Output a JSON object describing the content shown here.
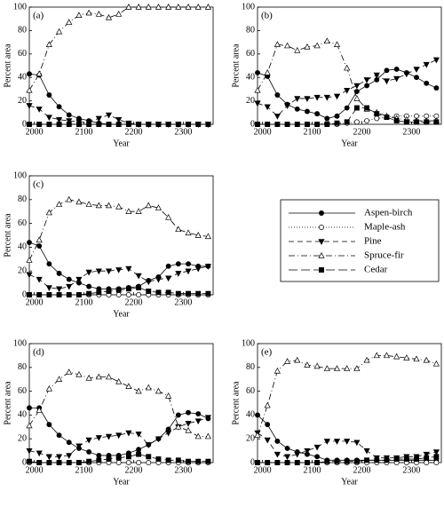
{
  "legend": [
    {
      "name": "Aspen-birch",
      "marker": "circle-filled",
      "dash": "none"
    },
    {
      "name": "Maple-ash",
      "marker": "circle-open",
      "dash": "1,2"
    },
    {
      "name": "Pine",
      "marker": "tri-down-filled",
      "dash": "6,4"
    },
    {
      "name": "Spruce-fir",
      "marker": "tri-up-open",
      "dash": "7,3,1,3"
    },
    {
      "name": "Cedar",
      "marker": "square-filled",
      "dash": "10,4"
    }
  ],
  "chart_data": [
    {
      "type": "line",
      "label": "(a)",
      "ylabel": "Percent area",
      "xlabel": "Year",
      "x": [
        1990,
        2010,
        2030,
        2050,
        2070,
        2090,
        2110,
        2130,
        2150,
        2170,
        2190,
        2210,
        2230,
        2250,
        2270,
        2290,
        2310,
        2330,
        2350
      ],
      "xlim": [
        1990,
        2360
      ],
      "ylim": [
        0,
        100
      ],
      "xticks": [
        2000,
        2100,
        2200,
        2300
      ],
      "yticks": [
        0,
        20,
        40,
        60,
        80,
        100
      ],
      "series": [
        {
          "values": [
            43,
            42,
            25,
            15,
            8,
            5,
            3,
            1,
            0,
            0,
            0,
            0,
            0,
            0,
            0,
            0,
            0,
            0,
            0
          ]
        },
        {
          "values": [
            0,
            0,
            0,
            0,
            0,
            0,
            0,
            0,
            0,
            0,
            0,
            0,
            0,
            0,
            0,
            0,
            0,
            0,
            0
          ]
        },
        {
          "values": [
            16,
            13,
            6,
            4,
            3,
            2,
            2,
            5,
            8,
            4,
            1,
            0,
            0,
            0,
            0,
            0,
            0,
            0,
            0
          ]
        },
        {
          "values": [
            29,
            43,
            68,
            79,
            87,
            93,
            95,
            94,
            91,
            94,
            100,
            100,
            100,
            100,
            100,
            100,
            100,
            100,
            100
          ]
        },
        {
          "values": [
            0,
            0,
            0,
            0,
            0,
            0,
            0,
            0,
            0,
            0,
            0,
            0,
            0,
            0,
            0,
            0,
            0,
            0,
            0
          ]
        }
      ]
    },
    {
      "type": "line",
      "label": "(b)",
      "ylabel": "Percent area",
      "xlabel": "Year",
      "x": [
        1990,
        2010,
        2030,
        2050,
        2070,
        2090,
        2110,
        2130,
        2150,
        2170,
        2190,
        2210,
        2230,
        2250,
        2270,
        2290,
        2310,
        2330,
        2350
      ],
      "xlim": [
        1990,
        2360
      ],
      "ylim": [
        0,
        100
      ],
      "xticks": [
        2000,
        2100,
        2200,
        2300
      ],
      "yticks": [
        0,
        20,
        40,
        60,
        80,
        100
      ],
      "series": [
        {
          "values": [
            44,
            41,
            25,
            17,
            13,
            11,
            9,
            5,
            7,
            14,
            28,
            33,
            38,
            46,
            47,
            44,
            40,
            35,
            31
          ]
        },
        {
          "values": [
            0,
            0,
            0,
            0,
            0,
            0,
            0,
            1,
            0,
            1,
            2,
            3,
            5,
            6,
            7,
            7,
            7,
            7,
            7
          ]
        },
        {
          "values": [
            18,
            15,
            7,
            16,
            22,
            22,
            23,
            23,
            24,
            29,
            33,
            38,
            42,
            37,
            39,
            43,
            47,
            51,
            55
          ]
        },
        {
          "values": [
            29,
            44,
            68,
            67,
            63,
            66,
            67,
            71,
            68,
            48,
            22,
            13,
            10,
            7,
            5,
            4,
            3,
            3,
            3
          ]
        },
        {
          "values": [
            0,
            0,
            0,
            0,
            0,
            0,
            0,
            0,
            1,
            2,
            14,
            14,
            9,
            6,
            3,
            2,
            2,
            2,
            2
          ]
        }
      ]
    },
    {
      "type": "line",
      "label": "(c)",
      "ylabel": "Percent area",
      "xlabel": "Year",
      "x": [
        1990,
        2010,
        2030,
        2050,
        2070,
        2090,
        2110,
        2130,
        2150,
        2170,
        2190,
        2210,
        2230,
        2250,
        2270,
        2290,
        2310,
        2330,
        2350
      ],
      "xlim": [
        1990,
        2360
      ],
      "ylim": [
        0,
        100
      ],
      "xticks": [
        2000,
        2100,
        2200,
        2300
      ],
      "yticks": [
        0,
        20,
        40,
        60,
        80,
        100
      ],
      "series": [
        {
          "values": [
            44,
            41,
            26,
            18,
            13,
            10,
            7,
            5,
            5,
            5,
            6,
            7,
            12,
            15,
            24,
            26,
            26,
            24,
            24
          ]
        },
        {
          "values": [
            0,
            0,
            0,
            0,
            0,
            0,
            0,
            0,
            0,
            0,
            0,
            0,
            0,
            0,
            0,
            0,
            0,
            0,
            0
          ]
        },
        {
          "values": [
            17,
            13,
            6,
            5,
            7,
            13,
            19,
            20,
            20,
            21,
            22,
            16,
            11,
            13,
            14,
            18,
            20,
            22,
            24
          ]
        },
        {
          "values": [
            29,
            46,
            69,
            76,
            80,
            78,
            76,
            75,
            75,
            74,
            70,
            70,
            75,
            73,
            65,
            55,
            52,
            50,
            49
          ]
        },
        {
          "values": [
            0,
            0,
            0,
            0,
            0,
            0,
            1,
            2,
            3,
            4,
            5,
            6,
            3,
            2,
            2,
            1,
            1,
            1,
            1
          ]
        }
      ]
    },
    {
      "type": "line",
      "label": "(d)",
      "ylabel": "Percent area",
      "xlabel": "Year",
      "x": [
        1990,
        2010,
        2030,
        2050,
        2070,
        2090,
        2110,
        2130,
        2150,
        2170,
        2190,
        2210,
        2230,
        2250,
        2270,
        2290,
        2310,
        2330,
        2350
      ],
      "xlim": [
        1990,
        2360
      ],
      "ylim": [
        0,
        100
      ],
      "xticks": [
        2000,
        2100,
        2200,
        2300
      ],
      "yticks": [
        0,
        20,
        40,
        60,
        80,
        100
      ],
      "series": [
        {
          "values": [
            46,
            46,
            32,
            23,
            17,
            12,
            9,
            6,
            6,
            6,
            8,
            11,
            15,
            20,
            28,
            40,
            42,
            41,
            37
          ]
        },
        {
          "values": [
            0,
            0,
            0,
            0,
            0,
            0,
            0,
            0,
            0,
            0,
            0,
            0,
            0,
            0,
            0,
            0,
            0,
            0,
            0
          ]
        },
        {
          "values": [
            10,
            8,
            5,
            5,
            6,
            14,
            19,
            21,
            22,
            23,
            25,
            24,
            15,
            20,
            25,
            30,
            33,
            35,
            38
          ]
        },
        {
          "values": [
            31,
            44,
            62,
            70,
            76,
            74,
            71,
            72,
            72,
            68,
            64,
            60,
            63,
            60,
            56,
            30,
            27,
            22,
            22
          ]
        },
        {
          "values": [
            1,
            0,
            0,
            0,
            0,
            0,
            1,
            2,
            3,
            4,
            5,
            7,
            5,
            3,
            2,
            2,
            1,
            1,
            1
          ]
        }
      ]
    },
    {
      "type": "line",
      "label": "(e)",
      "ylabel": "Percent area",
      "xlabel": "Year",
      "x": [
        1990,
        2010,
        2030,
        2050,
        2070,
        2090,
        2110,
        2130,
        2150,
        2170,
        2190,
        2210,
        2230,
        2250,
        2270,
        2290,
        2310,
        2330,
        2350
      ],
      "xlim": [
        1990,
        2360
      ],
      "ylim": [
        0,
        100
      ],
      "xticks": [
        2000,
        2100,
        2200,
        2300
      ],
      "yticks": [
        0,
        20,
        40,
        60,
        80,
        100
      ],
      "series": [
        {
          "values": [
            40,
            32,
            18,
            12,
            9,
            7,
            5,
            2,
            2,
            2,
            2,
            2,
            2,
            2,
            2,
            2,
            2,
            2,
            2
          ]
        },
        {
          "values": [
            0,
            0,
            0,
            0,
            0,
            0,
            0,
            0,
            0,
            0,
            0,
            0,
            0,
            0,
            0,
            0,
            0,
            0,
            0
          ]
        },
        {
          "values": [
            25,
            19,
            7,
            5,
            7,
            10,
            13,
            18,
            18,
            18,
            17,
            10,
            4,
            4,
            4,
            5,
            5,
            7,
            9
          ]
        },
        {
          "values": [
            23,
            48,
            77,
            85,
            86,
            82,
            81,
            79,
            79,
            79,
            79,
            86,
            90,
            90,
            89,
            88,
            87,
            86,
            83
          ]
        },
        {
          "values": [
            0,
            0,
            0,
            0,
            0,
            0,
            0,
            1,
            1,
            1,
            1,
            2,
            2,
            2,
            3,
            3,
            3,
            4,
            5
          ]
        }
      ]
    }
  ]
}
